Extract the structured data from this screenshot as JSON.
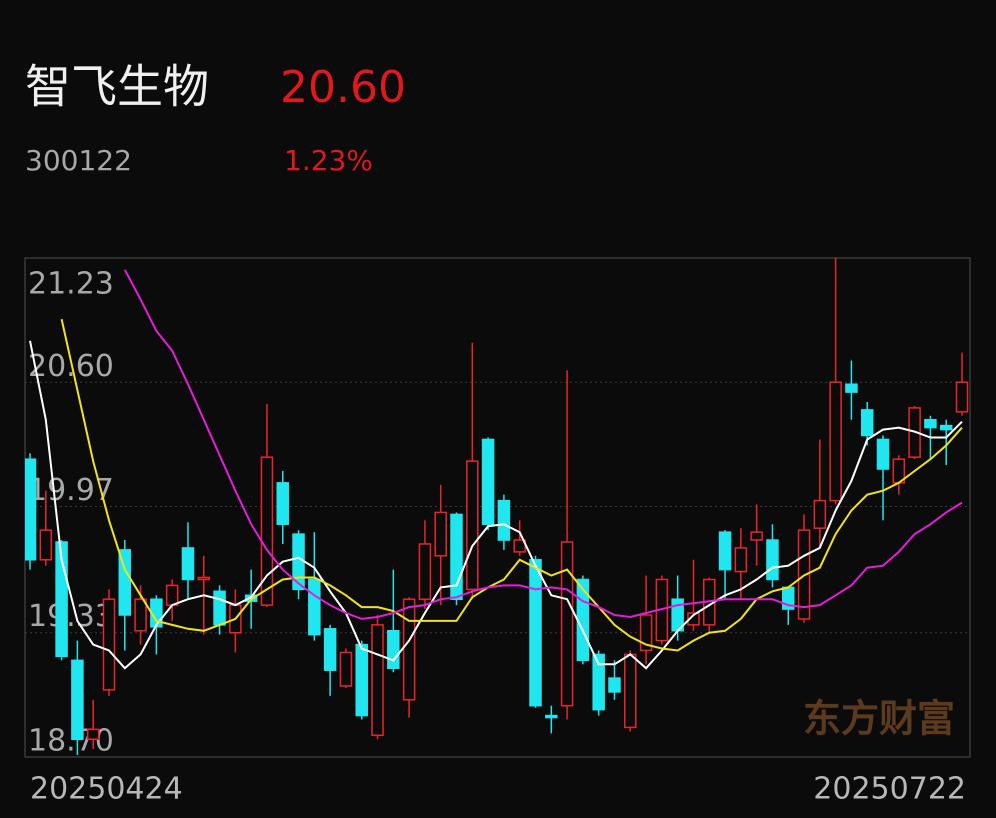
{
  "header": {
    "name": "智飞生物",
    "price": "20.60",
    "code": "300122",
    "change": "1.23%"
  },
  "chart_data": {
    "type": "candlestick",
    "watermark": "东方财富",
    "categories": [
      "20250424",
      null,
      null,
      null,
      null,
      null,
      null,
      null,
      null,
      null,
      null,
      null,
      null,
      null,
      null,
      null,
      null,
      null,
      null,
      null,
      null,
      null,
      null,
      null,
      null,
      null,
      null,
      null,
      null,
      null,
      null,
      null,
      null,
      null,
      null,
      null,
      null,
      null,
      null,
      null,
      null,
      null,
      null,
      null,
      null,
      null,
      null,
      null,
      null,
      null,
      null,
      null,
      null,
      null,
      null,
      null,
      null,
      null,
      null,
      "20250722"
    ],
    "open": [
      20.21,
      19.7,
      19.79,
      19.19,
      18.79,
      19.04,
      19.75,
      19.34,
      19.5,
      19.47,
      19.76,
      19.6,
      19.54,
      19.33,
      19.52,
      19.47,
      20.09,
      19.83,
      19.6,
      19.35,
      19.06,
      19.27,
      18.81,
      19.34,
      18.99,
      19.5,
      19.72,
      19.93,
      19.55,
      20.31,
      20.0,
      19.74,
      19.7,
      18.91,
      18.96,
      19.6,
      19.22,
      19.1,
      18.85,
      19.24,
      19.29,
      19.5,
      19.37,
      19.37,
      19.84,
      19.64,
      19.8,
      19.8,
      19.56,
      19.4,
      19.86,
      20.0,
      20.59,
      20.46,
      20.31,
      20.09,
      20.22,
      20.41,
      20.38,
      20.45
    ],
    "high": [
      20.24,
      20.05,
      19.8,
      19.29,
      18.99,
      19.55,
      19.8,
      19.57,
      19.52,
      19.6,
      19.89,
      19.72,
      19.57,
      19.55,
      19.65,
      20.49,
      20.15,
      19.85,
      19.84,
      19.37,
      19.25,
      19.29,
      19.42,
      19.65,
      19.51,
      19.9,
      20.08,
      19.94,
      20.8,
      20.32,
      20.03,
      19.9,
      19.72,
      18.96,
      20.66,
      19.62,
      19.24,
      19.19,
      19.24,
      19.62,
      19.62,
      19.62,
      19.7,
      19.61,
      19.85,
      19.86,
      19.98,
      19.88,
      19.56,
      19.93,
      20.31,
      21.23,
      20.71,
      20.5,
      20.33,
      20.23,
      20.48,
      20.43,
      20.41,
      20.75
    ],
    "low": [
      19.65,
      19.67,
      19.19,
      18.71,
      18.74,
      19.01,
      19.24,
      19.27,
      19.22,
      19.39,
      19.5,
      19.32,
      19.32,
      19.23,
      19.35,
      19.46,
      19.78,
      19.5,
      19.29,
      19.01,
      19.05,
      18.89,
      18.79,
      19.13,
      18.9,
      19.45,
      19.47,
      19.47,
      19.5,
      19.85,
      19.75,
      19.72,
      18.95,
      18.82,
      18.89,
      19.17,
      18.91,
      18.99,
      18.83,
      19.17,
      19.27,
      19.29,
      19.34,
      19.33,
      19.5,
      19.5,
      19.67,
      19.56,
      19.37,
      19.38,
      19.77,
      19.98,
      20.41,
      20.28,
      19.9,
      20.03,
      20.21,
      20.21,
      20.18,
      20.43
    ],
    "close": [
      19.7,
      19.85,
      19.21,
      18.79,
      18.84,
      19.5,
      19.42,
      19.5,
      19.36,
      19.57,
      19.6,
      19.61,
      19.37,
      19.47,
      19.49,
      20.22,
      19.88,
      19.55,
      19.32,
      19.14,
      19.23,
      18.91,
      19.37,
      19.15,
      19.5,
      19.78,
      19.94,
      19.5,
      20.2,
      19.88,
      19.8,
      19.8,
      18.96,
      18.9,
      19.79,
      19.19,
      18.94,
      19.03,
      19.22,
      19.42,
      19.6,
      19.34,
      19.43,
      19.6,
      19.65,
      19.76,
      19.84,
      19.6,
      19.45,
      19.85,
      20.0,
      20.6,
      20.55,
      20.33,
      20.16,
      20.21,
      20.47,
      20.37,
      20.36,
      20.6
    ],
    "up_color": "#e8262a",
    "down_color": "#20e6ef",
    "ma": [
      {
        "color": "#ffffff",
        "values": [
          20.81,
          20.41,
          19.7,
          19.39,
          19.27,
          19.24,
          19.15,
          19.22,
          19.37,
          19.47,
          19.5,
          19.52,
          19.5,
          19.47,
          19.51,
          19.62,
          19.69,
          19.71,
          19.66,
          19.54,
          19.43,
          19.25,
          19.22,
          19.19,
          19.29,
          19.43,
          19.56,
          19.57,
          19.77,
          19.87,
          19.88,
          19.84,
          19.67,
          19.52,
          19.5,
          19.34,
          19.17,
          19.17,
          19.22,
          19.15,
          19.24,
          19.34,
          19.42,
          19.47,
          19.52,
          19.55,
          19.6,
          19.66,
          19.67,
          19.72,
          19.76,
          19.95,
          20.1,
          20.31,
          20.36,
          20.37,
          20.35,
          20.32,
          20.32,
          20.4
        ]
      },
      {
        "color": "#f2e21c",
        "values": [
          null,
          null,
          20.92,
          20.56,
          20.2,
          19.9,
          19.65,
          19.52,
          19.39,
          19.37,
          19.35,
          19.34,
          19.37,
          19.4,
          19.5,
          19.55,
          19.6,
          19.61,
          19.61,
          19.57,
          19.52,
          19.46,
          19.46,
          19.44,
          19.39,
          19.39,
          19.39,
          19.39,
          19.51,
          19.56,
          19.6,
          19.7,
          19.66,
          19.62,
          19.65,
          19.55,
          19.46,
          19.37,
          19.31,
          19.27,
          19.25,
          19.24,
          19.29,
          19.33,
          19.34,
          19.4,
          19.5,
          19.54,
          19.56,
          19.62,
          19.66,
          19.83,
          19.95,
          20.03,
          20.05,
          20.09,
          20.15,
          20.21,
          20.28,
          20.37
        ]
      },
      {
        "color": "#e21fd8",
        "values": [
          null,
          null,
          null,
          null,
          null,
          null,
          21.17,
          21.02,
          20.86,
          20.76,
          20.59,
          20.41,
          20.23,
          20.05,
          19.88,
          19.75,
          19.65,
          19.58,
          19.52,
          19.47,
          19.43,
          19.4,
          19.41,
          19.43,
          19.46,
          19.47,
          19.5,
          19.51,
          19.54,
          19.56,
          19.57,
          19.57,
          19.55,
          19.56,
          19.55,
          19.49,
          19.46,
          19.42,
          19.41,
          19.43,
          19.45,
          19.47,
          19.48,
          19.49,
          19.5,
          19.5,
          19.5,
          19.5,
          19.47,
          19.46,
          19.47,
          19.52,
          19.57,
          19.66,
          19.67,
          19.74,
          19.83,
          19.88,
          19.94,
          19.99
        ]
      }
    ],
    "ylim": [
      18.7,
      21.23
    ],
    "yticks": [
      21.23,
      {
        "value": 20.6,
        "label": "20.60"
      },
      19.97,
      19.33,
      {
        "value": 18.7,
        "label": "18.70"
      }
    ],
    "grid": true
  }
}
